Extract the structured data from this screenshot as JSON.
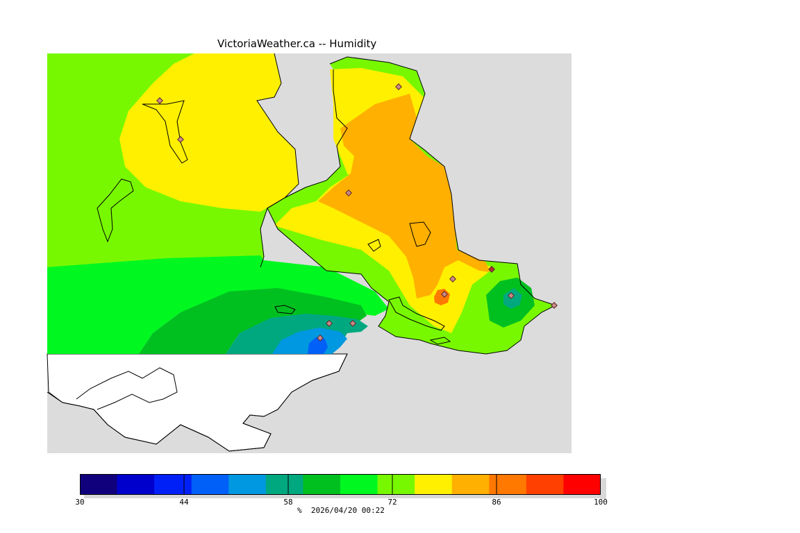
{
  "title": "VictoriaWeather.ca -- Humidity",
  "legend": {
    "unit": "%",
    "timestamp": "2026/04/20 00:22",
    "min": 30,
    "max": 100,
    "tick_values": [
      30,
      44,
      58,
      72,
      86,
      100
    ],
    "tick_labels": [
      "30",
      "44",
      "58",
      "72",
      "86",
      "100"
    ],
    "bands": [
      {
        "from": 30,
        "to": 35,
        "color": "#10007c"
      },
      {
        "from": 35,
        "to": 40,
        "color": "#0000cc"
      },
      {
        "from": 40,
        "to": 45,
        "color": "#0020f8"
      },
      {
        "from": 45,
        "to": 50,
        "color": "#0060f8"
      },
      {
        "from": 50,
        "to": 55,
        "color": "#0098e0"
      },
      {
        "from": 55,
        "to": 60,
        "color": "#00a880"
      },
      {
        "from": 60,
        "to": 65,
        "color": "#00c020"
      },
      {
        "from": 65,
        "to": 70,
        "color": "#00f820"
      },
      {
        "from": 70,
        "to": 75,
        "color": "#78f800"
      },
      {
        "from": 75,
        "to": 80,
        "color": "#fff000"
      },
      {
        "from": 80,
        "to": 85,
        "color": "#ffb000"
      },
      {
        "from": 85,
        "to": 90,
        "color": "#ff7800"
      },
      {
        "from": 90,
        "to": 95,
        "color": "#ff4000"
      },
      {
        "from": 95,
        "to": 100,
        "color": "#ff0000"
      }
    ]
  },
  "map": {
    "land_color": "#dcdcdc",
    "water_unanalyzed_color": "#ffffff",
    "station_marker": "diamond"
  }
}
